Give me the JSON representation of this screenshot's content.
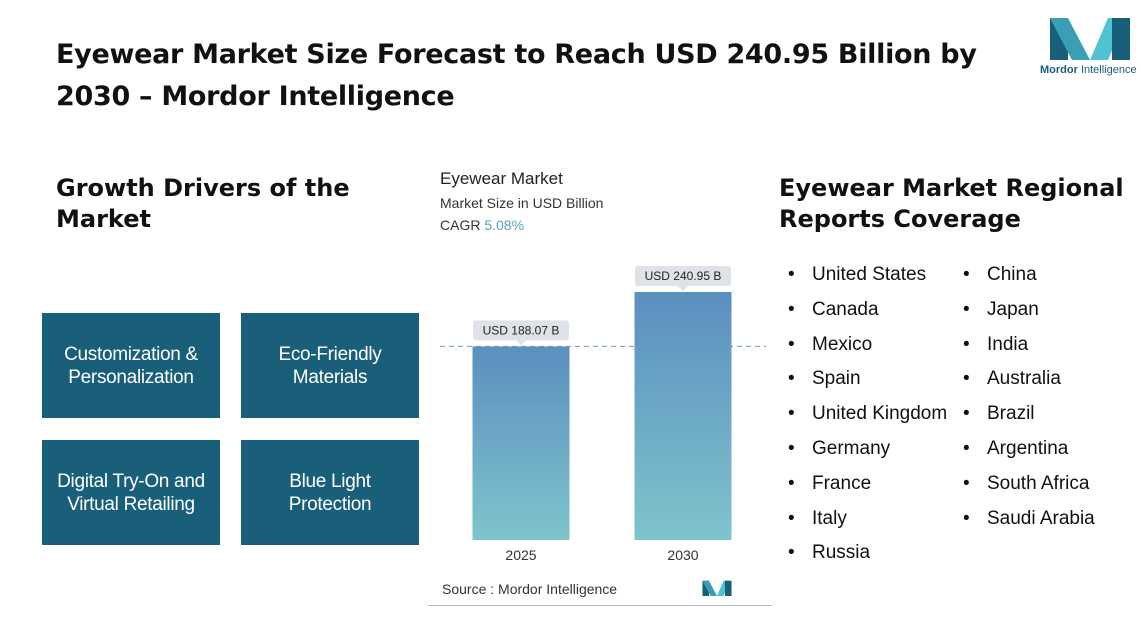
{
  "title": "Eyewear Market Size Forecast to Reach USD 240.95 Billion by 2030 – Mordor Intelligence",
  "logo": {
    "brand_bold": "Mordor",
    "brand_rest": " Intelligence"
  },
  "drivers": {
    "heading": "Growth Drivers of the Market",
    "items": [
      "Customization & Personalization",
      "Eco-Friendly Materials",
      "Digital Try-On and Virtual Retailing",
      "Blue Light Protection"
    ]
  },
  "chart_data": {
    "type": "bar",
    "title": "Eyewear Market",
    "subtitle": "Market Size in USD Billion",
    "cagr_label": "CAGR",
    "cagr_value": "5.08%",
    "categories": [
      "2025",
      "2030"
    ],
    "values": [
      188.07,
      240.95
    ],
    "data_labels": [
      "USD 188.07 B",
      "USD 240.95 B"
    ],
    "xlabel": "",
    "ylabel": "",
    "source": "Source :  Mordor Intelligence",
    "colors": {
      "bar_top": "#5b8fbf",
      "bar_bottom": "#7ec4cc",
      "label_bg": "#dfe3e8",
      "reference_line": "#7aaab8"
    }
  },
  "regions": {
    "heading": "Eyewear Market Regional Reports Coverage",
    "col1": [
      "United States",
      "Canada",
      "Mexico",
      "Spain",
      "United Kingdom",
      "Germany",
      "France",
      "Italy",
      "Russia"
    ],
    "col2": [
      "China",
      "Japan",
      "India",
      "Australia",
      "Brazil",
      "Argentina",
      "South Africa",
      "Saudi Arabia"
    ]
  },
  "colors": {
    "driver_box": "#1a5f7a",
    "brand": "#1a5f7a"
  }
}
